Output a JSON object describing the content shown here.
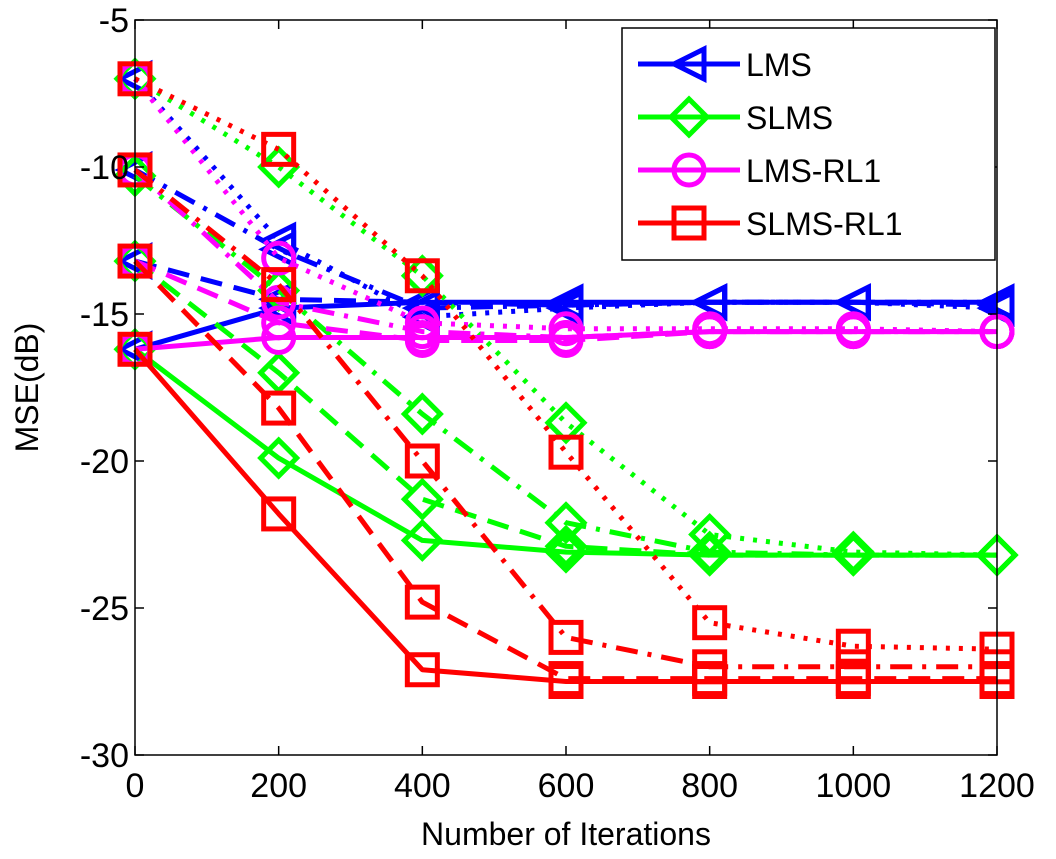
{
  "chart_data": {
    "type": "line",
    "xlabel": "Number of Iterations",
    "ylabel": "MSE(dB)",
    "xlim": [
      0,
      1200
    ],
    "ylim": [
      -30,
      -5
    ],
    "xticks": [
      0,
      200,
      400,
      600,
      800,
      1000,
      1200
    ],
    "yticks": [
      -5,
      -10,
      -15,
      -20,
      -25,
      -30
    ],
    "legend": {
      "placement": "top-right",
      "entries": [
        {
          "name": "LMS",
          "color": "#0000ff",
          "marker": "triangle-left"
        },
        {
          "name": "SLMS",
          "color": "#00ff00",
          "marker": "diamond"
        },
        {
          "name": "LMS-RL1",
          "color": "#ff00ff",
          "marker": "circle"
        },
        {
          "name": "SLMS-RL1",
          "color": "#ff0000",
          "marker": "square"
        }
      ]
    },
    "series": [
      {
        "algo": "LMS",
        "color": "#0000ff",
        "marker": "triangle-left",
        "style": "solid",
        "x": [
          0,
          200,
          400,
          600,
          800,
          1000,
          1200
        ],
        "y": [
          -16.2,
          -14.8,
          -14.6,
          -14.6,
          -14.6,
          -14.6,
          -14.6
        ]
      },
      {
        "algo": "LMS",
        "color": "#0000ff",
        "marker": "triangle-left",
        "style": "dashed",
        "x": [
          0,
          200,
          400,
          600,
          800,
          1000,
          1200
        ],
        "y": [
          -13.2,
          -14.5,
          -14.6,
          -14.7,
          -14.6,
          -14.6,
          -14.7
        ]
      },
      {
        "algo": "LMS",
        "color": "#0000ff",
        "marker": "triangle-left",
        "style": "dashdot",
        "x": [
          0,
          200,
          400,
          600,
          800,
          1000,
          1200
        ],
        "y": [
          -10.1,
          -12.8,
          -14.8,
          -14.7,
          -14.6,
          -14.6,
          -14.6
        ]
      },
      {
        "algo": "LMS",
        "color": "#0000ff",
        "marker": "triangle-left",
        "style": "dotted",
        "x": [
          0,
          200,
          400,
          600,
          800,
          1000,
          1200
        ],
        "y": [
          -7.0,
          -12.5,
          -15.1,
          -14.8,
          -14.6,
          -14.6,
          -14.8
        ]
      },
      {
        "algo": "SLMS",
        "color": "#00ff00",
        "marker": "diamond",
        "style": "solid",
        "x": [
          0,
          200,
          400,
          600,
          800,
          1000,
          1200
        ],
        "y": [
          -16.2,
          -19.9,
          -22.7,
          -23.1,
          -23.2,
          -23.2,
          -23.2
        ]
      },
      {
        "algo": "SLMS",
        "color": "#00ff00",
        "marker": "diamond",
        "style": "dashed",
        "x": [
          0,
          200,
          400,
          600,
          800,
          1000,
          1200
        ],
        "y": [
          -13.2,
          -17.0,
          -21.3,
          -22.9,
          -23.2,
          -23.2,
          -23.2
        ]
      },
      {
        "algo": "SLMS",
        "color": "#00ff00",
        "marker": "diamond",
        "style": "dashdot",
        "x": [
          0,
          200,
          400,
          600,
          800,
          1000,
          1200
        ],
        "y": [
          -10.3,
          -14.2,
          -18.4,
          -22.1,
          -23.1,
          -23.2,
          -23.2
        ]
      },
      {
        "algo": "SLMS",
        "color": "#00ff00",
        "marker": "diamond",
        "style": "dotted",
        "x": [
          0,
          200,
          400,
          600,
          800,
          1000,
          1200
        ],
        "y": [
          -7.0,
          -10.0,
          -13.7,
          -18.7,
          -22.5,
          -23.1,
          -23.2
        ]
      },
      {
        "algo": "LMS-RL1",
        "color": "#ff00ff",
        "marker": "circle",
        "style": "solid",
        "x": [
          0,
          200,
          400,
          600,
          800,
          1000,
          1200
        ],
        "y": [
          -16.2,
          -15.8,
          -15.8,
          -15.8,
          -15.6,
          -15.6,
          -15.6
        ]
      },
      {
        "algo": "LMS-RL1",
        "color": "#ff00ff",
        "marker": "circle",
        "style": "dashed",
        "x": [
          0,
          200,
          400,
          600,
          800,
          1000,
          1200
        ],
        "y": [
          -13.2,
          -15.3,
          -15.9,
          -15.9,
          -15.6,
          -15.6,
          -15.6
        ]
      },
      {
        "algo": "LMS-RL1",
        "color": "#ff00ff",
        "marker": "circle",
        "style": "dashdot",
        "x": [
          0,
          200,
          400,
          600,
          800,
          1000,
          1200
        ],
        "y": [
          -10.1,
          -14.6,
          -15.6,
          -15.8,
          -15.6,
          -15.6,
          -15.6
        ]
      },
      {
        "algo": "LMS-RL1",
        "color": "#ff00ff",
        "marker": "circle",
        "style": "dotted",
        "x": [
          0,
          200,
          400,
          600,
          800,
          1000,
          1200
        ],
        "y": [
          -7.0,
          -13.1,
          -15.3,
          -15.5,
          -15.5,
          -15.5,
          -15.6
        ]
      },
      {
        "algo": "SLMS-RL1",
        "color": "#ff0000",
        "marker": "square",
        "style": "solid",
        "x": [
          0,
          200,
          400,
          600,
          800,
          1000,
          1200
        ],
        "y": [
          -16.2,
          -21.8,
          -27.1,
          -27.5,
          -27.5,
          -27.5,
          -27.5
        ]
      },
      {
        "algo": "SLMS-RL1",
        "color": "#ff0000",
        "marker": "square",
        "style": "dashed",
        "x": [
          0,
          200,
          400,
          600,
          800,
          1000,
          1200
        ],
        "y": [
          -13.2,
          -18.2,
          -24.8,
          -27.4,
          -27.4,
          -27.4,
          -27.4
        ]
      },
      {
        "algo": "SLMS-RL1",
        "color": "#ff0000",
        "marker": "square",
        "style": "dashdot",
        "x": [
          0,
          200,
          400,
          600,
          800,
          1000,
          1200
        ],
        "y": [
          -10.1,
          -14.0,
          -20.0,
          -26.0,
          -27.0,
          -27.0,
          -27.0
        ]
      },
      {
        "algo": "SLMS-RL1",
        "color": "#ff0000",
        "marker": "square",
        "style": "dotted",
        "x": [
          0,
          200,
          400,
          600,
          800,
          1000,
          1200
        ],
        "y": [
          -7.0,
          -9.4,
          -13.7,
          -19.7,
          -25.5,
          -26.3,
          -26.4
        ]
      }
    ]
  }
}
